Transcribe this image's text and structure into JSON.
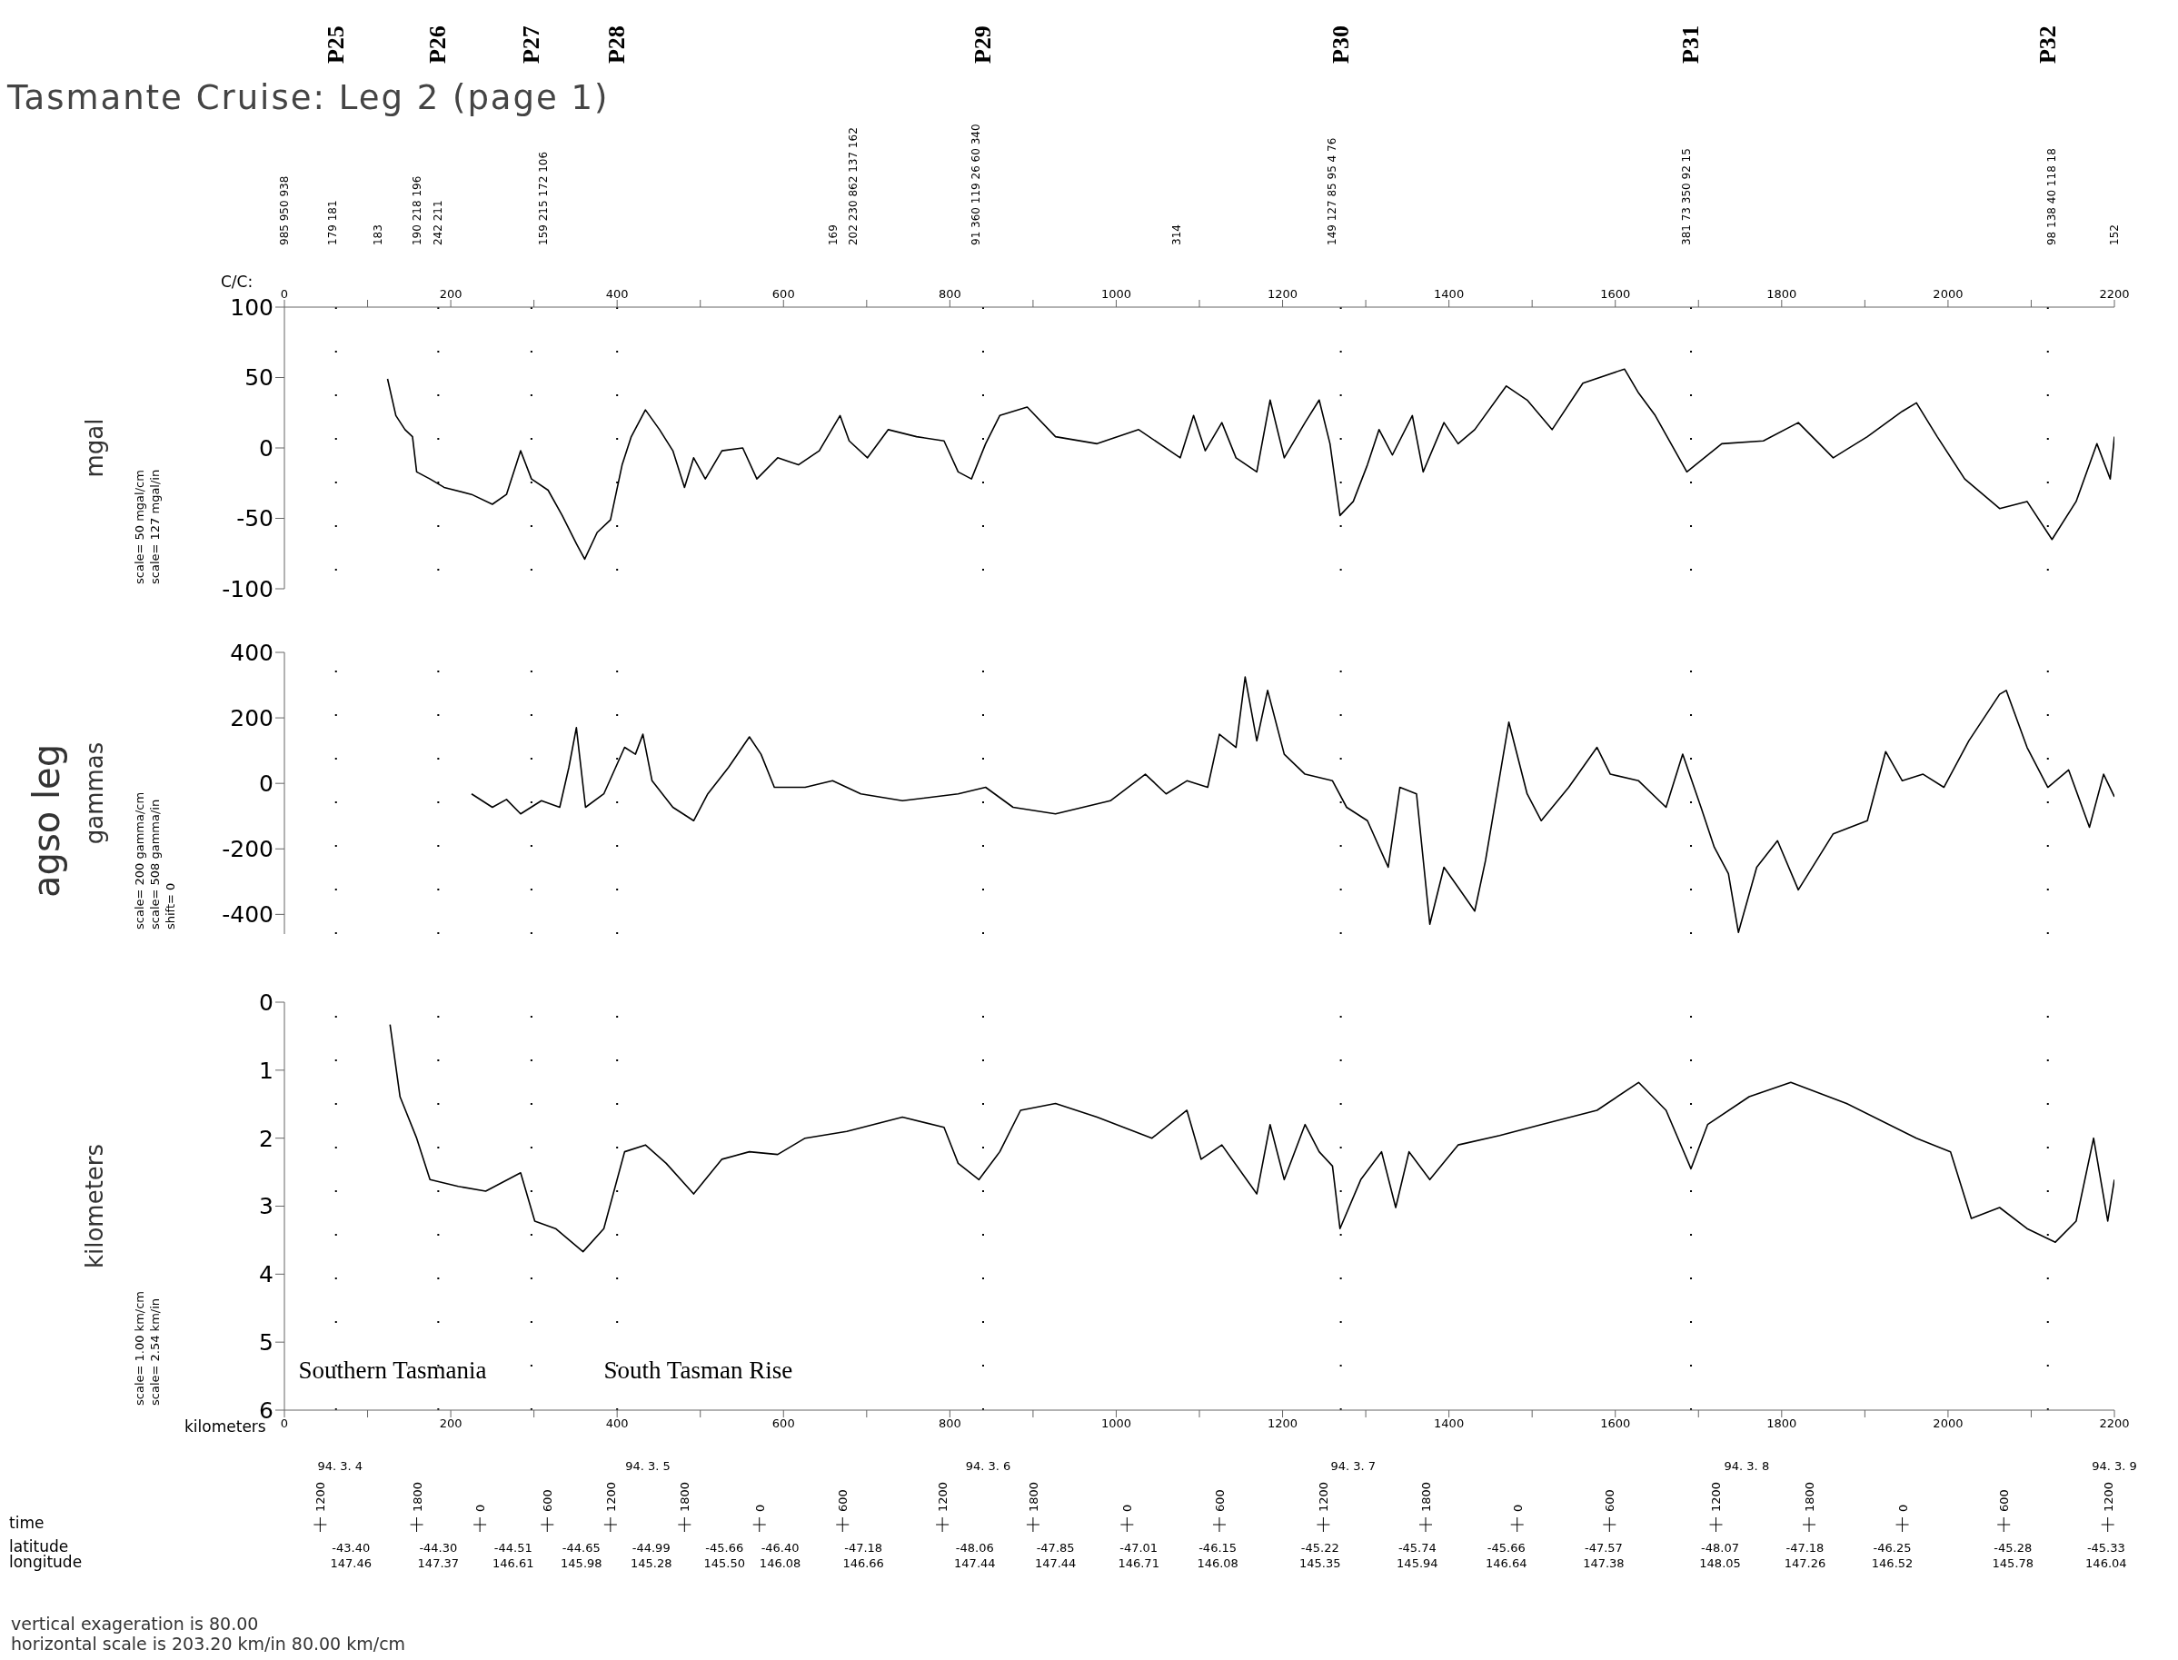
{
  "chart_data": [
    {
      "type": "line",
      "title": "Tasmante Cruise: Leg 2 (page 1)",
      "ylabel": "mgal",
      "xlabel": "C/C:",
      "xlim": [
        0,
        2200
      ],
      "ylim": [
        -100,
        100
      ],
      "yticks": [
        -100,
        -50,
        0,
        50,
        100
      ],
      "xticks": [
        0,
        {
          "value": 100,
          "label": null
        },
        200,
        {
          "value": 300,
          "label": null
        },
        400,
        {
          "value": 500,
          "label": null
        },
        600,
        {
          "value": 700,
          "label": null
        },
        800,
        {
          "value": 900,
          "label": null
        },
        1000,
        {
          "value": 1100,
          "label": null
        },
        1200,
        {
          "value": 1300,
          "label": null
        },
        1400,
        {
          "value": 1500,
          "label": null
        },
        1600,
        {
          "value": 1700,
          "label": null
        },
        1800,
        {
          "value": 1900,
          "label": null
        },
        2000,
        {
          "value": 2100,
          "label": null
        },
        2200
      ],
      "series": [
        {
          "color": "#000000",
          "x": [
            124,
            134,
            145,
            154,
            159,
            175,
            192,
            225,
            250,
            267,
            284,
            297,
            317,
            334,
            351,
            361,
            376,
            392,
            406,
            417,
            434,
            451,
            467,
            481,
            492,
            506,
            526,
            551,
            568,
            593,
            618,
            643,
            668,
            679,
            701,
            726,
            760,
            793,
            810,
            826,
            843,
            860,
            893,
            927,
            977,
            1027,
            1077,
            1093,
            1107,
            1127,
            1144,
            1169,
            1185,
            1202,
            1227,
            1244,
            1257,
            1269,
            1285,
            1302,
            1316,
            1332,
            1356,
            1369,
            1394,
            1411,
            1431,
            1469,
            1494,
            1524,
            1561,
            1611,
            1628,
            1648,
            1686,
            1728,
            1778,
            1820,
            1862,
            1903,
            1945,
            1962,
            1987,
            2020,
            2062,
            2095,
            2125,
            2154,
            2179,
            2195,
            2200
          ],
          "values": [
            49,
            23,
            13,
            8,
            -17,
            -22,
            -28,
            -33,
            -40,
            -33,
            -2,
            -22,
            -30,
            -48,
            -68,
            -79,
            -60,
            -51,
            -12,
            8,
            27,
            13,
            -2,
            -28,
            -7,
            -22,
            -2,
            0,
            -22,
            -7,
            -12,
            -2,
            23,
            5,
            -7,
            13,
            8,
            5,
            -17,
            -22,
            3,
            23,
            29,
            8,
            3,
            13,
            -7,
            23,
            -2,
            18,
            -7,
            -17,
            34,
            -7,
            18,
            34,
            3,
            -48,
            -38,
            -12,
            13,
            -5,
            23,
            -17,
            18,
            3,
            13,
            44,
            34,
            13,
            46,
            56,
            39,
            23,
            -17,
            3,
            5,
            18,
            -7,
            8,
            26,
            32,
            8,
            -22,
            -43,
            -38,
            -65,
            -38,
            3,
            -22,
            8
          ]
        }
      ],
      "ref_lines": [
        {
          "axis": "x",
          "value": 62,
          "line_style": "dotted"
        },
        {
          "axis": "x",
          "value": 185,
          "line_style": "dotted"
        },
        {
          "axis": "x",
          "value": 297,
          "line_style": "dotted"
        },
        {
          "axis": "x",
          "value": 400,
          "line_style": "dotted"
        },
        {
          "axis": "x",
          "value": 840,
          "line_style": "dotted"
        },
        {
          "axis": "x",
          "value": 1270,
          "line_style": "dotted"
        },
        {
          "axis": "x",
          "value": 1691,
          "line_style": "dotted"
        },
        {
          "axis": "x",
          "value": 2120,
          "line_style": "dotted"
        }
      ],
      "annotations": [
        "scale= 50 mgal/cm",
        "scale= 127 mgal/in",
        "P25",
        "P26",
        "P27",
        "P28",
        "P29",
        "P30",
        "P31",
        "P32",
        "985 950 938",
        "179 181",
        "183",
        "190 218 196",
        "242 211",
        "159 215 172 106",
        "169",
        "202 230 862 137 162",
        "91 360 119 26 60 340",
        "314",
        "149 127 85 95 4 76",
        "381 73 350 92 15",
        "98 138 40 118 18",
        "152"
      ]
    },
    {
      "type": "line",
      "ylabel": "gammas",
      "xlim": [
        0,
        2200
      ],
      "ylim": [
        -460,
        400
      ],
      "yticks": [
        -400,
        -200,
        0,
        200,
        400
      ],
      "tick_labels": "y",
      "series": [
        {
          "color": "#000000",
          "x": [
            225,
            250,
            267,
            284,
            309,
            331,
            342,
            351,
            362,
            384,
            409,
            422,
            431,
            442,
            467,
            492,
            509,
            534,
            559,
            573,
            589,
            626,
            659,
            693,
            743,
            810,
            843,
            876,
            927,
            993,
            1035,
            1060,
            1085,
            1110,
            1124,
            1144,
            1155,
            1169,
            1182,
            1202,
            1227,
            1260,
            1277,
            1302,
            1327,
            1341,
            1361,
            1377,
            1394,
            1411,
            1431,
            1444,
            1472,
            1494,
            1511,
            1544,
            1578,
            1594,
            1628,
            1661,
            1681,
            1703,
            1719,
            1736,
            1748,
            1770,
            1795,
            1820,
            1862,
            1903,
            1925,
            1945,
            1970,
            1995,
            2025,
            2062,
            2070,
            2095,
            2120,
            2145,
            2170,
            2187,
            2200
          ],
          "values": [
            -32,
            -73,
            -49,
            -93,
            -53,
            -73,
            49,
            170,
            -73,
            -32,
            110,
            89,
            150,
            8,
            -73,
            -114,
            -32,
            49,
            142,
            89,
            -12,
            -12,
            8,
            -32,
            -53,
            -32,
            -12,
            -73,
            -93,
            -53,
            28,
            -32,
            8,
            -12,
            150,
            110,
            325,
            130,
            284,
            89,
            28,
            8,
            -73,
            -114,
            -256,
            -12,
            -32,
            -430,
            -256,
            -317,
            -390,
            -235,
            187,
            -32,
            -114,
            -12,
            110,
            28,
            8,
            -73,
            89,
            -73,
            -195,
            -276,
            -455,
            -256,
            -175,
            -325,
            -154,
            -114,
            97,
            8,
            28,
            -12,
            130,
            272,
            284,
            110,
            -12,
            41,
            -134,
            28,
            -41
          ]
        }
      ],
      "ref_lines": [
        {
          "axis": "x",
          "value": 62,
          "line_style": "dotted"
        },
        {
          "axis": "x",
          "value": 185,
          "line_style": "dotted"
        },
        {
          "axis": "x",
          "value": 297,
          "line_style": "dotted"
        },
        {
          "axis": "x",
          "value": 400,
          "line_style": "dotted"
        },
        {
          "axis": "x",
          "value": 840,
          "line_style": "dotted"
        },
        {
          "axis": "x",
          "value": 1270,
          "line_style": "dotted"
        },
        {
          "axis": "x",
          "value": 1691,
          "line_style": "dotted"
        },
        {
          "axis": "x",
          "value": 2120,
          "line_style": "dotted"
        }
      ],
      "annotations": [
        "scale= 200 gamma/cm",
        "scale= 508 gamma/in",
        "shift= 0"
      ]
    },
    {
      "type": "line",
      "ylabel": "kilometers",
      "xlabel": "kilometers",
      "xlim": [
        0,
        2200
      ],
      "xticks": [
        0,
        {
          "value": 100,
          "label": null
        },
        200,
        {
          "value": 300,
          "label": null
        },
        400,
        {
          "value": 500,
          "label": null
        },
        600,
        {
          "value": 700,
          "label": null
        },
        800,
        {
          "value": 900,
          "label": null
        },
        1000,
        {
          "value": 1100,
          "label": null
        },
        1200,
        {
          "value": 1300,
          "label": null
        },
        1400,
        {
          "value": 1500,
          "label": null
        },
        1600,
        {
          "value": 1700,
          "label": null
        },
        1800,
        {
          "value": 1900,
          "label": null
        },
        2000,
        {
          "value": 2100,
          "label": null
        },
        2200
      ],
      "ylim": [
        6,
        0
      ],
      "yticks": [
        0,
        1,
        2,
        3,
        4,
        5,
        6
      ],
      "series": [
        {
          "color": "#000000",
          "x": [
            127,
            139,
            159,
            175,
            209,
            242,
            284,
            301,
            326,
            359,
            384,
            409,
            434,
            459,
            492,
            526,
            559,
            593,
            626,
            676,
            743,
            793,
            810,
            835,
            860,
            885,
            927,
            977,
            1043,
            1085,
            1102,
            1127,
            1169,
            1185,
            1202,
            1227,
            1244,
            1260,
            1269,
            1294,
            1319,
            1336,
            1352,
            1377,
            1411,
            1461,
            1511,
            1578,
            1628,
            1661,
            1691,
            1711,
            1761,
            1811,
            1878,
            1962,
            2003,
            2028,
            2062,
            2095,
            2129,
            2154,
            2175,
            2192,
            2200
          ],
          "values": [
            0.33,
            1.39,
            2.0,
            2.61,
            2.71,
            2.78,
            2.51,
            3.22,
            3.33,
            3.67,
            3.33,
            2.2,
            2.1,
            2.37,
            2.82,
            2.31,
            2.2,
            2.24,
            2.0,
            1.9,
            1.69,
            1.84,
            2.37,
            2.61,
            2.2,
            1.59,
            1.49,
            1.69,
            2.0,
            1.59,
            2.31,
            2.1,
            2.82,
            1.8,
            2.61,
            1.8,
            2.2,
            2.41,
            3.33,
            2.61,
            2.2,
            3.02,
            2.2,
            2.61,
            2.1,
            1.96,
            1.8,
            1.59,
            1.18,
            1.59,
            2.45,
            1.8,
            1.39,
            1.18,
            1.49,
            2.0,
            2.2,
            3.18,
            3.02,
            3.33,
            3.53,
            3.22,
            2.0,
            3.22,
            2.61
          ]
        }
      ],
      "ref_lines": [
        {
          "axis": "x",
          "value": 62,
          "line_style": "dotted"
        },
        {
          "axis": "x",
          "value": 185,
          "line_style": "dotted"
        },
        {
          "axis": "x",
          "value": 297,
          "line_style": "dotted"
        },
        {
          "axis": "x",
          "value": 400,
          "line_style": "dotted"
        },
        {
          "axis": "x",
          "value": 840,
          "line_style": "dotted"
        },
        {
          "axis": "x",
          "value": 1270,
          "line_style": "dotted"
        },
        {
          "axis": "x",
          "value": 1691,
          "line_style": "dotted"
        },
        {
          "axis": "x",
          "value": 2120,
          "line_style": "dotted"
        }
      ],
      "annotations": [
        "scale= 1.00 km/cm",
        "scale= 2.54 km/in",
        "time",
        "latitude",
        "longitude",
        "Southern Tasmania",
        "South Tasman Rise",
        "94. 3. 4",
        "94. 3. 5",
        "94. 3. 6",
        "94. 3. 7",
        "94. 3. 8",
        "94. 3. 9",
        "1200",
        "1800",
        "0",
        "600",
        "1200",
        "1800",
        "0",
        "600",
        "1200",
        "1800",
        "0",
        "600",
        "1200",
        "1800",
        "0",
        "600",
        "1200",
        "1800",
        "0",
        "600",
        "1200",
        "-43.40\n147.46",
        "-44.30\n147.37",
        "-44.51\n146.61",
        "-44.65\n145.98",
        "-44.99\n145.28",
        "-45.66\n145.50",
        "-46.40\n146.08",
        "-47.18\n146.66",
        "-48.06\n147.44",
        "-47.85\n147.44",
        "-47.01\n146.71",
        "-46.15\n146.08",
        "-45.22\n145.35",
        "-45.74\n145.94",
        "-45.66\n146.64",
        "-47.57\n147.38",
        "-48.07\n148.05",
        "-47.18\n147.26",
        "-46.25\n146.52",
        "-45.28\n145.78",
        "-45.33\n146.04"
      ]
    },
    {
      "type": "other",
      "annotations": [
        "agso leg"
      ]
    },
    {
      "type": "other",
      "annotations": [
        "vertical exageration is 80.00",
        "horizontal scale is 203.20 km/in 80.00 km/cm"
      ]
    }
  ]
}
